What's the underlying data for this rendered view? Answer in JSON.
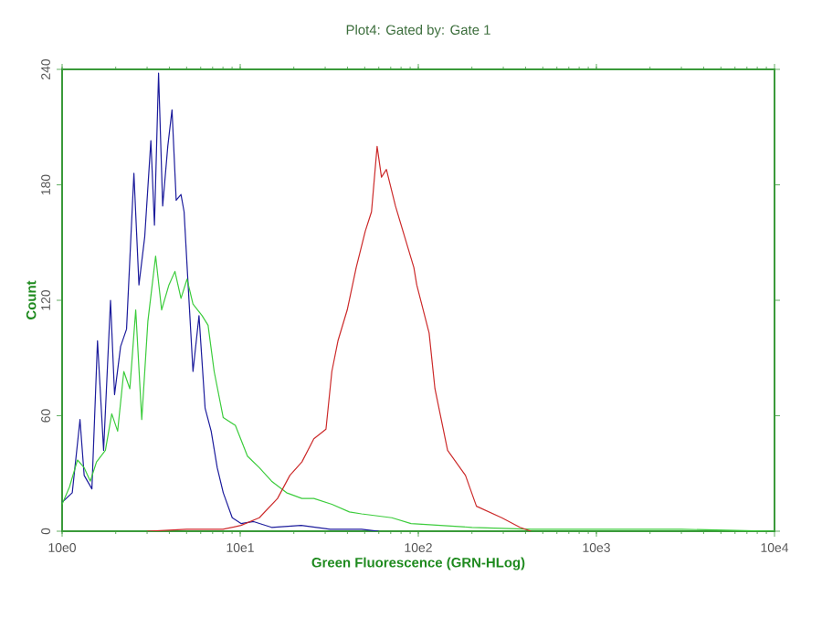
{
  "chart_data": {
    "type": "line",
    "title": "Plot4:  Gated by: Gate 1",
    "xlabel": "Green Fluorescence (GRN-HLog)",
    "ylabel": "Count",
    "log": "x",
    "xlim": [
      10,
      100000
    ],
    "ylim": [
      0,
      240
    ],
    "xticks": [
      {
        "value": 10,
        "label": "10e0"
      },
      {
        "value": 100,
        "label": "10e1"
      },
      {
        "value": 1000,
        "label": "10e2"
      },
      {
        "value": 10000,
        "label": "10e3"
      },
      {
        "value": 100000,
        "label": "10e4"
      }
    ],
    "yticks": [
      0,
      60,
      120,
      180,
      240
    ],
    "series": [
      {
        "color": "#1c1c9c",
        "x": [
          10,
          11.4,
          12.6,
          13.3,
          14.7,
          15.8,
          17.1,
          18.7,
          19.7,
          21.3,
          23,
          25.3,
          27,
          29.1,
          31.5,
          33,
          34.8,
          36.7,
          39.2,
          41.4,
          43.7,
          46.5,
          48.4,
          51,
          54.3,
          58.7,
          63.5,
          68.7,
          74.3,
          80.3,
          90.2,
          101,
          119,
          150,
          220,
          320,
          480,
          600
        ],
        "values": [
          15,
          20,
          58,
          29,
          22,
          99,
          42,
          120,
          71,
          96,
          105,
          186,
          128,
          153,
          203,
          159,
          238,
          169,
          200,
          219,
          172,
          175,
          166,
          128,
          83,
          112,
          64,
          52,
          33,
          20,
          7,
          4,
          5,
          2,
          3,
          1,
          1,
          0
        ]
      },
      {
        "color": "#3ccc3c",
        "x": [
          10,
          11,
          12.2,
          13.3,
          14.4,
          15.6,
          17.5,
          19,
          20.5,
          22.2,
          24,
          25.9,
          28,
          30.3,
          33.5,
          36.2,
          39.8,
          43,
          46.5,
          50.3,
          54.3,
          61.1,
          66,
          71.4,
          80.3,
          93.9,
          109.8,
          128,
          150,
          182,
          222,
          259,
          327,
          410,
          480,
          710,
          910,
          2000,
          4300,
          9500,
          30000,
          100000
        ],
        "values": [
          14,
          23,
          37,
          33,
          26,
          36,
          42,
          61,
          52,
          83,
          74,
          115,
          58,
          109,
          143,
          115,
          128,
          135,
          121,
          131,
          118,
          112,
          107,
          83,
          59,
          55,
          39,
          33,
          26,
          20,
          17,
          17,
          14,
          10,
          9,
          7,
          4,
          2,
          1,
          1,
          1,
          0
        ]
      },
      {
        "color": "#cc2a2a",
        "x": [
          30,
          50,
          80,
          101,
          128,
          162,
          190,
          222,
          259,
          303,
          327,
          354,
          399,
          448,
          504,
          546,
          587,
          621,
          662,
          744,
          838,
          944,
          980,
          1150,
          1240,
          1460,
          1840,
          2120,
          2940,
          3720,
          4300
        ],
        "values": [
          0,
          1,
          1,
          3,
          7,
          17,
          29,
          36,
          48,
          53,
          83,
          99,
          115,
          137,
          156,
          166,
          200,
          184,
          188,
          169,
          153,
          137,
          128,
          103,
          74,
          42,
          29,
          13,
          7,
          2,
          0
        ]
      }
    ]
  }
}
